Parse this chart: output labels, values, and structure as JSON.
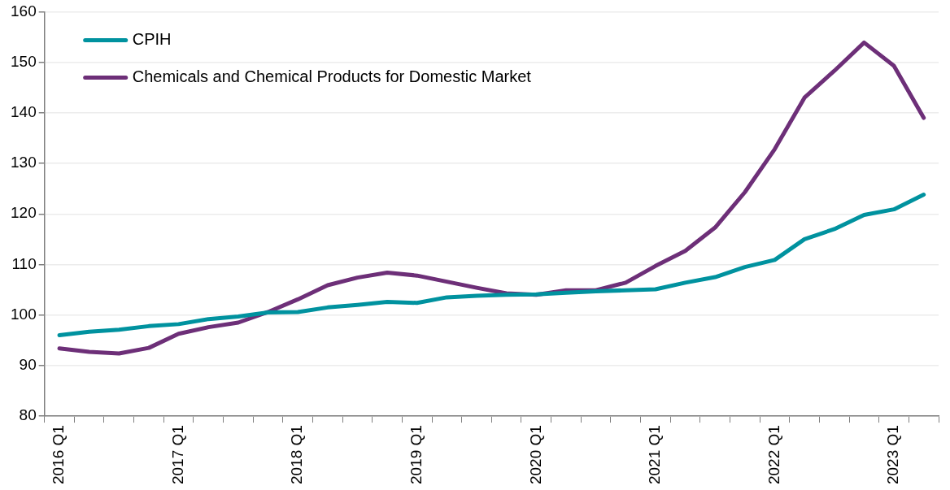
{
  "chart_data": {
    "type": "line",
    "categories": [
      "2016 Q1",
      null,
      null,
      null,
      "2017 Q1",
      null,
      null,
      null,
      "2018 Q1",
      null,
      null,
      null,
      "2019 Q1",
      null,
      null,
      null,
      "2020 Q1",
      null,
      null,
      null,
      "2021 Q1",
      null,
      null,
      null,
      "2022 Q1",
      null,
      null,
      null,
      "2023 Q1",
      null
    ],
    "series": [
      {
        "name": "CPIH",
        "color": "#00929f",
        "values": [
          96.0,
          96.7,
          97.1,
          97.8,
          98.2,
          99.2,
          99.7,
          100.5,
          100.6,
          101.5,
          102.0,
          102.6,
          102.4,
          103.5,
          103.8,
          104.0,
          104.1,
          104.4,
          104.7,
          104.9,
          105.1,
          106.4,
          107.5,
          109.5,
          110.9,
          115.0,
          117.0,
          119.8,
          120.9,
          123.8
        ]
      },
      {
        "name": "Chemicals and Chemical Products for Domestic Market",
        "color": "#6d2f78",
        "values": [
          93.4,
          92.7,
          92.4,
          93.5,
          96.3,
          97.6,
          98.5,
          100.6,
          103.1,
          105.9,
          107.4,
          108.4,
          107.8,
          106.6,
          105.4,
          104.3,
          104.0,
          104.9,
          104.9,
          106.4,
          109.7,
          112.7,
          117.3,
          124.3,
          132.8,
          143.0,
          148.3,
          153.9,
          149.3,
          139.0
        ]
      }
    ],
    "ylim": [
      80,
      160
    ],
    "yticks": [
      80,
      90,
      100,
      110,
      120,
      130,
      140,
      150,
      160
    ],
    "grid": "y",
    "legend": "top left",
    "marker": "none",
    "line_style": "solid"
  }
}
